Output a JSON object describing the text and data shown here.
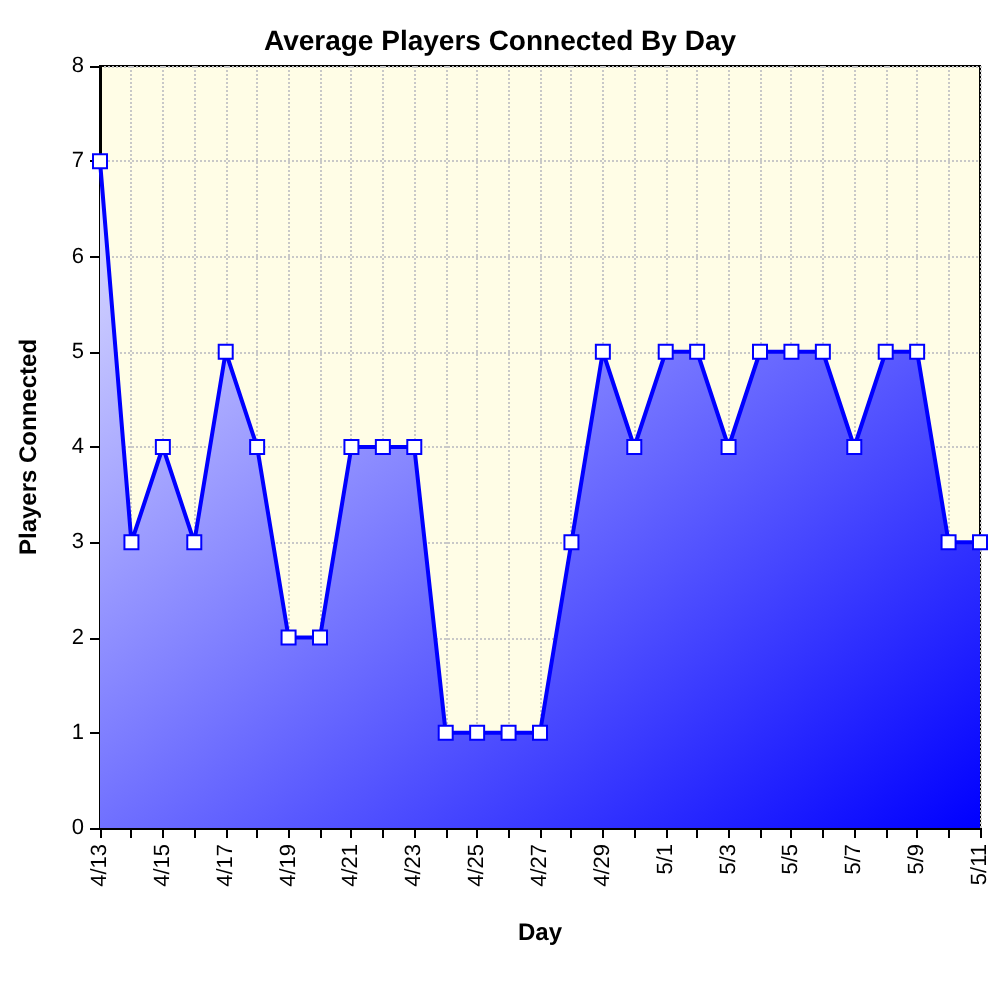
{
  "chart_data": {
    "type": "area",
    "title": "Average Players Connected By Day",
    "xlabel": "Day",
    "ylabel": "Players Connected",
    "categories": [
      "4/13",
      null,
      "4/15",
      null,
      "4/17",
      null,
      "4/19",
      null,
      "4/21",
      null,
      "4/23",
      null,
      "4/25",
      null,
      "4/27",
      null,
      "4/29",
      null,
      "5/1",
      null,
      "5/3",
      null,
      "5/5",
      null,
      "5/7",
      null,
      "5/9",
      null,
      "5/11"
    ],
    "series": [
      {
        "color": "#0000ff",
        "values": [
          7,
          3,
          4,
          3,
          5,
          4,
          2,
          2,
          4,
          4,
          4,
          1,
          1,
          1,
          1,
          3,
          5,
          4,
          5,
          5,
          4,
          5,
          5,
          5,
          4,
          5,
          5,
          3,
          3
        ]
      }
    ],
    "ylim": [
      0,
      8
    ],
    "yticks": [
      0,
      1,
      2,
      3,
      4,
      5,
      6,
      7,
      8
    ],
    "grid": true,
    "marker": "square",
    "line_style": "solid"
  }
}
